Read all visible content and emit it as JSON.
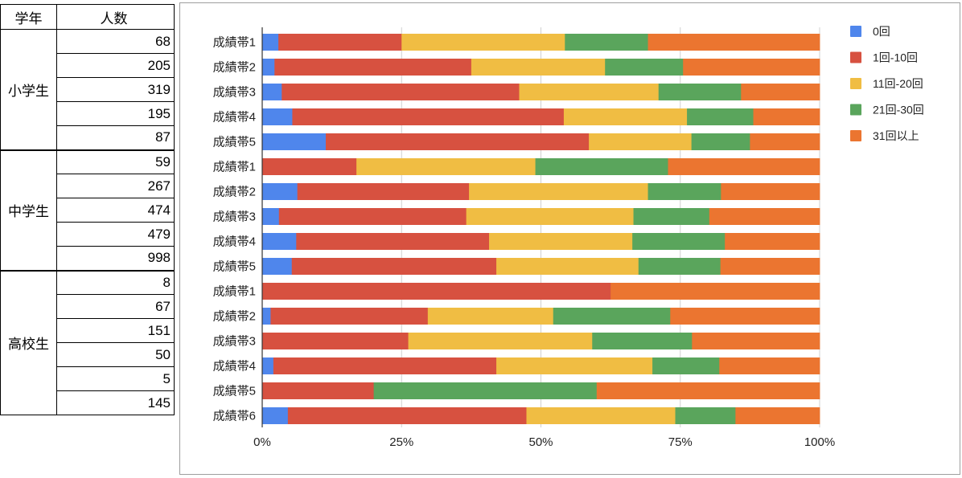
{
  "table": {
    "headers": [
      "学年",
      "人数"
    ],
    "groups": [
      {
        "label": "小学生",
        "counts": [
          "68",
          "205",
          "319",
          "195",
          "87"
        ]
      },
      {
        "label": "中学生",
        "counts": [
          "59",
          "267",
          "474",
          "479",
          "998"
        ]
      },
      {
        "label": "高校生",
        "counts": [
          "8",
          "67",
          "151",
          "50",
          "5",
          "145"
        ]
      }
    ]
  },
  "chart_data": {
    "type": "bar",
    "orientation": "horizontal",
    "stacked": "percent",
    "title": "",
    "xlabel": "",
    "ylabel": "",
    "xlim": [
      0,
      100
    ],
    "x_ticks": [
      "0%",
      "25%",
      "50%",
      "75%",
      "100%"
    ],
    "grid": true,
    "legend_position": "right",
    "categories": [
      "成績帯1",
      "成績帯2",
      "成績帯3",
      "成績帯4",
      "成績帯5",
      "成績帯1",
      "成績帯2",
      "成績帯3",
      "成績帯4",
      "成績帯5",
      "成績帯1",
      "成績帯2",
      "成績帯3",
      "成績帯4",
      "成績帯5",
      "成績帯6"
    ],
    "series": [
      {
        "name": "0回",
        "color": "#4f86ec",
        "values": [
          2.9,
          2.2,
          3.5,
          5.4,
          11.4,
          0,
          6.3,
          3.0,
          6.1,
          5.3,
          0,
          1.5,
          0,
          2.0,
          0,
          4.6
        ]
      },
      {
        "name": "1回-10回",
        "color": "#d75140",
        "values": [
          22.1,
          35.3,
          42.6,
          48.7,
          47.2,
          16.9,
          30.8,
          33.6,
          34.6,
          36.7,
          62.5,
          28.2,
          26.2,
          40.0,
          20.0,
          42.8
        ]
      },
      {
        "name": "11回-20回",
        "color": "#f0bd43",
        "values": [
          29.3,
          24.0,
          25.0,
          22.1,
          18.4,
          32.1,
          32.1,
          30.0,
          25.7,
          25.5,
          0,
          22.5,
          33.0,
          28.0,
          0,
          26.7
        ]
      },
      {
        "name": "21回-30回",
        "color": "#5aa55c",
        "values": [
          14.9,
          14.0,
          14.8,
          11.9,
          10.5,
          23.8,
          13.1,
          13.6,
          16.6,
          14.7,
          0,
          21.0,
          17.9,
          12.0,
          40.0,
          10.8
        ]
      },
      {
        "name": "31回以上",
        "color": "#eb7530",
        "values": [
          30.8,
          24.5,
          14.1,
          11.9,
          12.5,
          27.2,
          17.7,
          19.8,
          17.0,
          17.8,
          37.5,
          26.8,
          22.9,
          18.0,
          40.0,
          15.1
        ]
      }
    ]
  }
}
